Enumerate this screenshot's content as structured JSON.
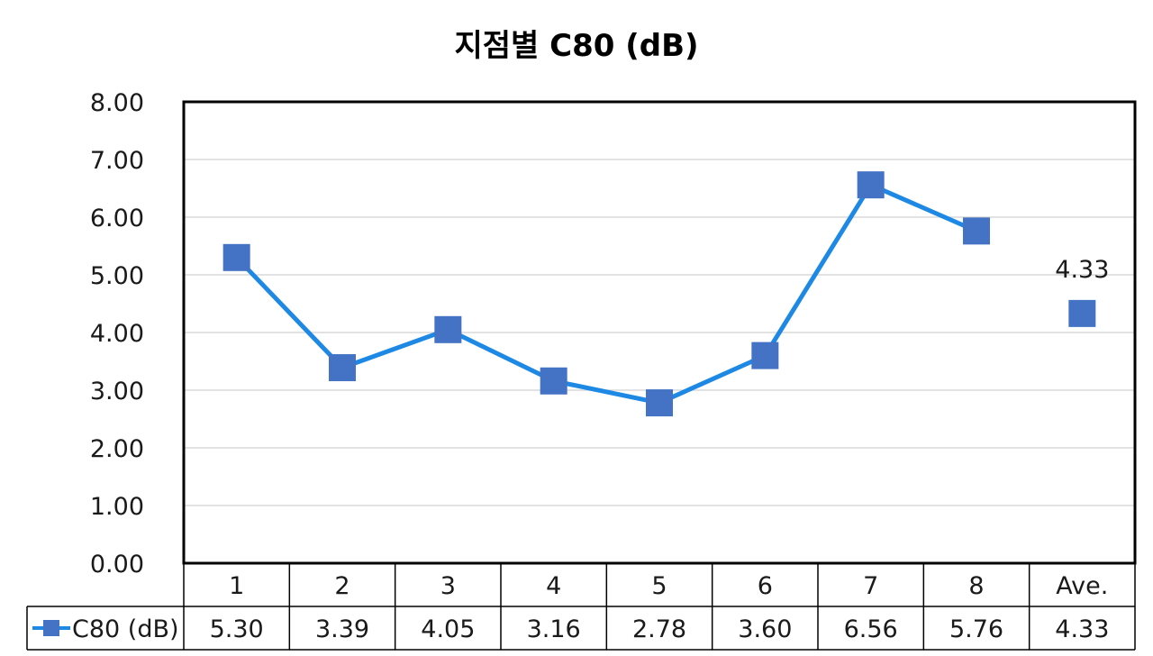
{
  "chart_data": {
    "type": "line",
    "title": "지점별 C80 (dB)",
    "categories": [
      "1",
      "2",
      "3",
      "4",
      "5",
      "6",
      "7",
      "8",
      "Ave."
    ],
    "series": [
      {
        "name": "C80 (dB)",
        "values": [
          5.3,
          3.39,
          4.05,
          3.16,
          2.78,
          3.6,
          6.56,
          5.76,
          4.33
        ],
        "table_values": [
          "5.30",
          "3.39",
          "4.05",
          "3.16",
          "2.78",
          "3.60",
          "6.56",
          "5.76",
          "4.33"
        ],
        "color": "#4472C4",
        "line_color": "#1E88E5",
        "connected_through": "8",
        "average_label": "4.33"
      }
    ],
    "y_ticks": [
      "0.00",
      "1.00",
      "2.00",
      "3.00",
      "4.00",
      "5.00",
      "6.00",
      "7.00",
      "8.00"
    ],
    "ylim": [
      0,
      8
    ],
    "grid": true,
    "legend": "data-table-left"
  }
}
